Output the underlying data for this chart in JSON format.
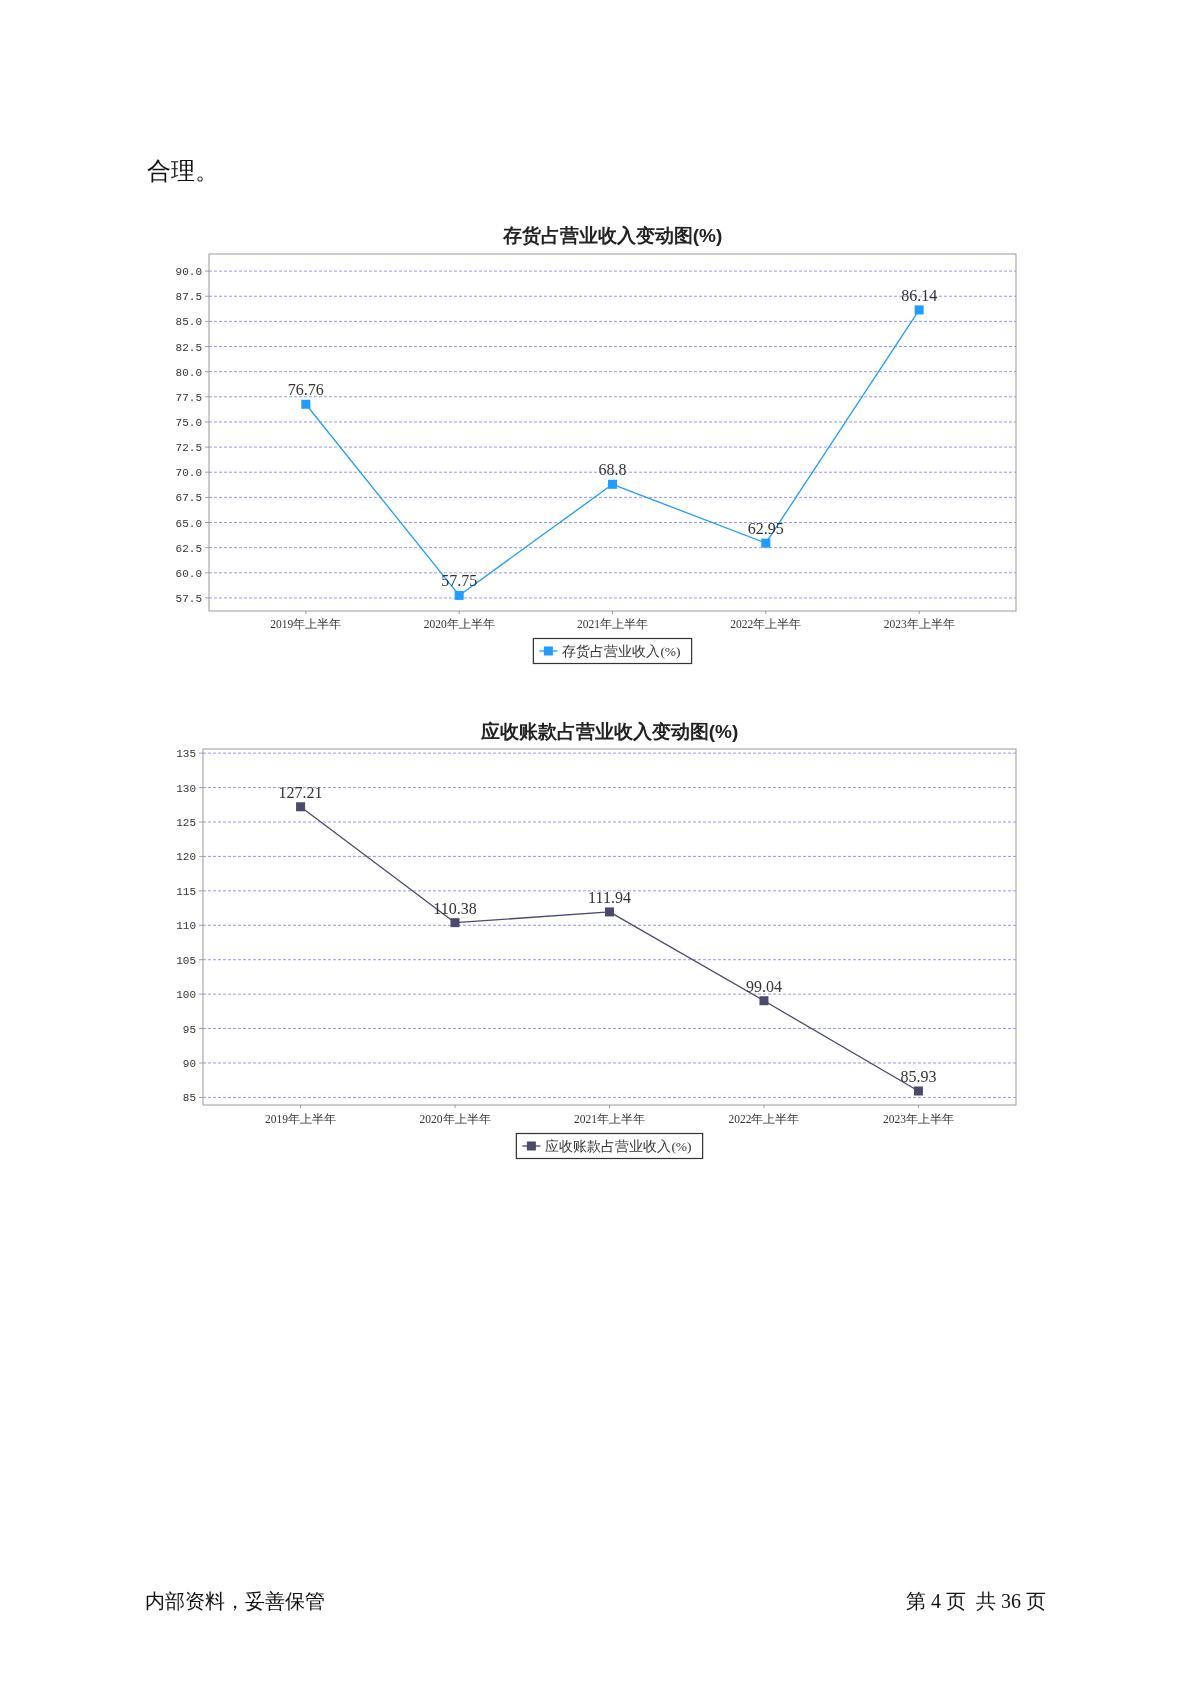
{
  "chart_data": [
    {
      "type": "line",
      "title": "存货占营业收入变动图(%)",
      "categories": [
        "2019年上半年",
        "2020年上半年",
        "2021年上半年",
        "2022年上半年",
        "2023年上半年"
      ],
      "series": [
        {
          "name": "存货占营业收入(%)",
          "color": "#1e9cff",
          "values": [
            76.76,
            57.75,
            68.8,
            62.95,
            86.14
          ]
        }
      ],
      "ylim": [
        56.2,
        91.7
      ],
      "yticks": [
        57.5,
        {
          "value": 60,
          "label": "60.0"
        },
        62.5,
        {
          "value": 65,
          "label": "65.0"
        },
        67.5,
        {
          "value": 70,
          "label": "70.0"
        },
        72.5,
        {
          "value": 75,
          "label": "75.0"
        },
        77.5,
        {
          "value": 80,
          "label": "80.0"
        },
        82.5,
        {
          "value": 85,
          "label": "85.0"
        },
        87.5,
        {
          "value": 90,
          "label": "90.0"
        }
      ],
      "grid": "y",
      "legend": "bottom",
      "marker": "square",
      "line_style": "solid",
      "data_labels": true,
      "annotations": [
        "合理。"
      ]
    },
    {
      "type": "line",
      "title": "应收账款占营业收入变动图(%)",
      "categories": [
        "2019年上半年",
        "2020年上半年",
        "2021年上半年",
        "2022年上半年",
        "2023年上半年"
      ],
      "series": [
        {
          "name": "应收账款占营业收入(%)",
          "color": "#4a4a6a",
          "values": [
            127.21,
            110.38,
            111.94,
            99.04,
            85.93
          ]
        }
      ],
      "ylim": [
        83.9,
        135.6
      ],
      "yticks": [
        85,
        90,
        95,
        100,
        105,
        110,
        115,
        120,
        125,
        130,
        135
      ],
      "grid": "y",
      "legend": "bottom",
      "marker": "square",
      "line_style": "solid",
      "data_labels": true,
      "annotations": [
        "内部资料，妥善保管",
        "第 4 页  共 36 页"
      ]
    }
  ]
}
